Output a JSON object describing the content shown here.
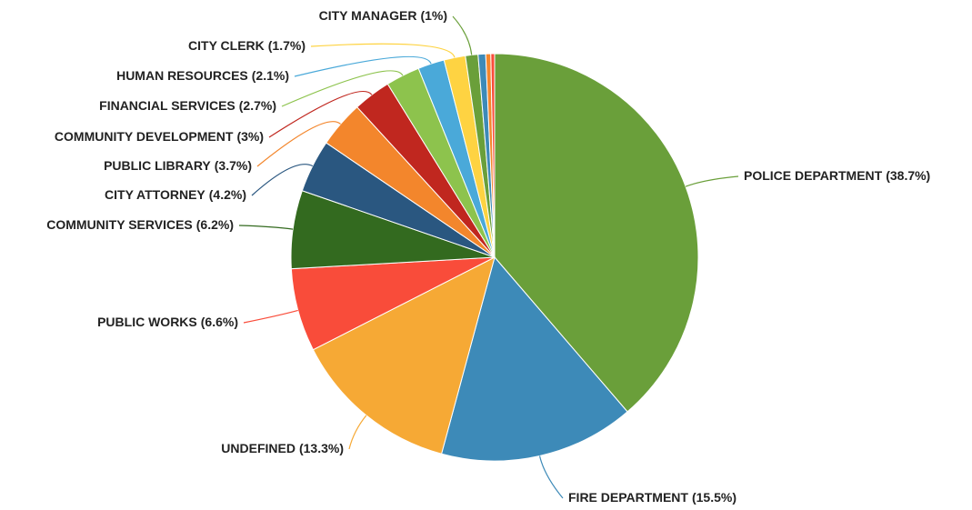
{
  "chart_data": {
    "type": "pie",
    "categories": [
      "POLICE DEPARTMENT",
      "FIRE DEPARTMENT",
      "UNDEFINED",
      "PUBLIC WORKS",
      "COMMUNITY SERVICES",
      "CITY ATTORNEY",
      "PUBLIC LIBRARY",
      "COMMUNITY DEVELOPMENT",
      "FINANCIAL SERVICES",
      "HUMAN RESOURCES",
      "CITY CLERK",
      "CITY MANAGER",
      null,
      null,
      null
    ],
    "values": [
      38.7,
      15.5,
      13.3,
      6.6,
      6.2,
      4.2,
      3.7,
      3,
      2.7,
      2.1,
      1.7,
      1,
      0.6,
      0.4,
      0.3
    ],
    "value_labels": [
      "(38.7%)",
      "(15.5%)",
      "(13.3%)",
      "(6.6%)",
      "(6.2%)",
      "(4.2%)",
      "(3.7%)",
      "(3%)",
      "(2.7%)",
      "(2.1%)",
      "(1.7%)",
      "(1%)",
      null,
      null,
      null
    ],
    "colors": [
      "#6a9f3a",
      "#3d8ab8",
      "#f6a935",
      "#f94c3a",
      "#336a1f",
      "#2a5780",
      "#f3862c",
      "#c0271f",
      "#8dc34d",
      "#4aa9d9",
      "#fed342",
      "#6a9f3a",
      "#3d8ab8",
      "#f3862c",
      "#f94c3a"
    ]
  }
}
